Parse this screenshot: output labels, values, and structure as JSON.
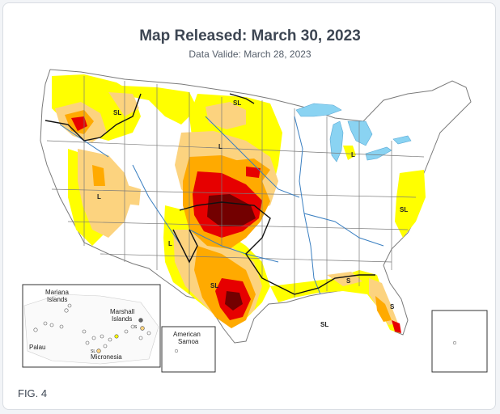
{
  "header": {
    "title": "Map Released: March 30, 2023",
    "subtitle": "Data Valide: March 28, 2023"
  },
  "map": {
    "labels": [
      "SL",
      "SL",
      "L",
      "L",
      "L",
      "SL",
      "S",
      "S",
      "SL",
      "SL",
      "L"
    ],
    "inset_labels": {
      "mariana": "Mariana\nIslands",
      "marshall": "Marshall\nIslands",
      "palau": "Palau",
      "micronesia": "Micronesia",
      "samoa": "American\nSamoa",
      "small_sl": "SL",
      "small_s": "S"
    },
    "colors": {
      "d0": "#ffff00",
      "d1": "#fcd37f",
      "d2": "#ffaa00",
      "d3": "#e60000",
      "d4": "#730000",
      "water": "#8ad3f2",
      "river": "#3a7fc1",
      "border": "#7a7a7a",
      "impact_line": "#111111"
    }
  },
  "footer": {
    "fig_label": "FIG. 4"
  }
}
